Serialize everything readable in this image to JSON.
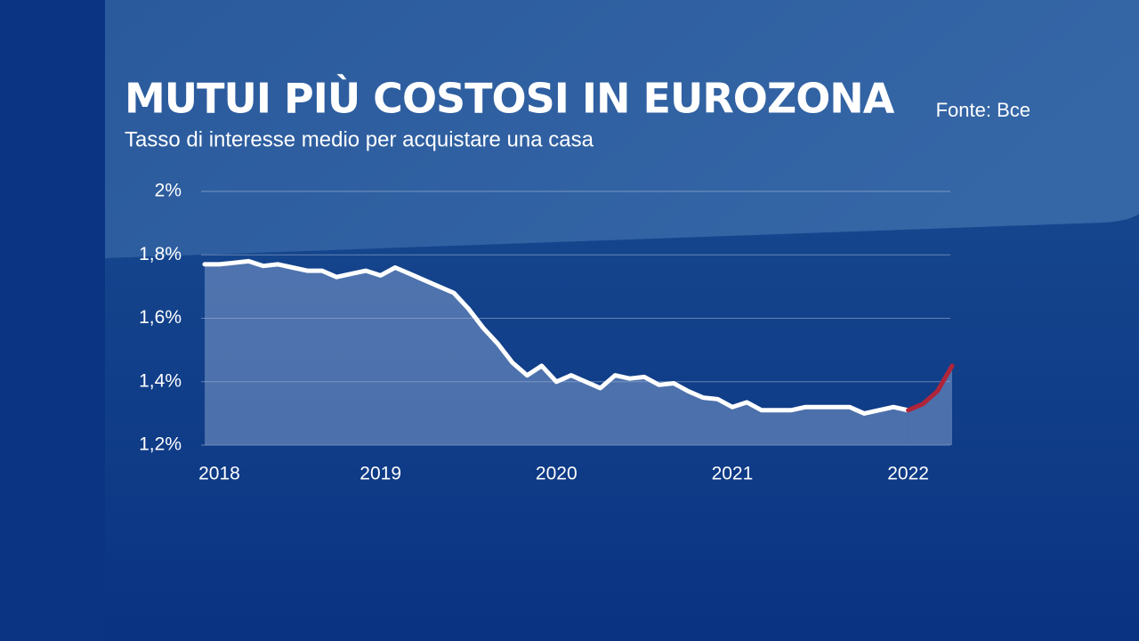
{
  "chart_data": {
    "type": "line",
    "title": "MUTUI PIÙ COSTOSI IN EUROZONA",
    "subtitle": "Tasso di interesse medio per acquistare una casa",
    "source": "Fonte: Bce",
    "categories": [
      null,
      "2018",
      null,
      null,
      null,
      null,
      null,
      null,
      null,
      null,
      null,
      null,
      "2019",
      null,
      null,
      null,
      null,
      null,
      null,
      null,
      null,
      null,
      null,
      null,
      "2020",
      null,
      null,
      null,
      null,
      null,
      null,
      null,
      null,
      null,
      null,
      null,
      "2021",
      null,
      null,
      null,
      null,
      null,
      null,
      null,
      null,
      null,
      null,
      null,
      "2022",
      null,
      null,
      null
    ],
    "series": [
      {
        "color": "#ffffff",
        "values": [
          1.77,
          1.77,
          1.775,
          1.78,
          1.765,
          1.77,
          1.76,
          1.75,
          1.75,
          1.73,
          1.74,
          1.75,
          1.735,
          1.76,
          1.74,
          1.72,
          1.7,
          1.68,
          1.63,
          1.57,
          1.52,
          1.46,
          1.42,
          1.45,
          1.4,
          1.42,
          1.4,
          1.38,
          1.42,
          1.41,
          1.415,
          1.39,
          1.395,
          1.37,
          1.35,
          1.345,
          1.32,
          1.335,
          1.31,
          1.31,
          1.31,
          1.32,
          1.32,
          1.32,
          1.32,
          1.3,
          1.31,
          1.32,
          1.31,
          null,
          null,
          null
        ]
      },
      {
        "color": "#b0243a",
        "values": [
          null,
          null,
          null,
          null,
          null,
          null,
          null,
          null,
          null,
          null,
          null,
          null,
          null,
          null,
          null,
          null,
          null,
          null,
          null,
          null,
          null,
          null,
          null,
          null,
          null,
          null,
          null,
          null,
          null,
          null,
          null,
          null,
          null,
          null,
          null,
          null,
          null,
          null,
          null,
          null,
          null,
          null,
          null,
          null,
          null,
          null,
          null,
          null,
          1.31,
          1.33,
          1.37,
          1.45
        ]
      }
    ],
    "ylim": [
      1.2,
      2.0
    ],
    "yticks": [
      {
        "value": 1.2,
        "label": "1,2%"
      },
      {
        "value": 1.4,
        "label": "1,4%"
      },
      {
        "value": 1.6,
        "label": "1,6%"
      },
      {
        "value": 1.8,
        "label": "1,8%"
      },
      {
        "value": 2.0,
        "label": "2%"
      }
    ],
    "grid": true
  }
}
